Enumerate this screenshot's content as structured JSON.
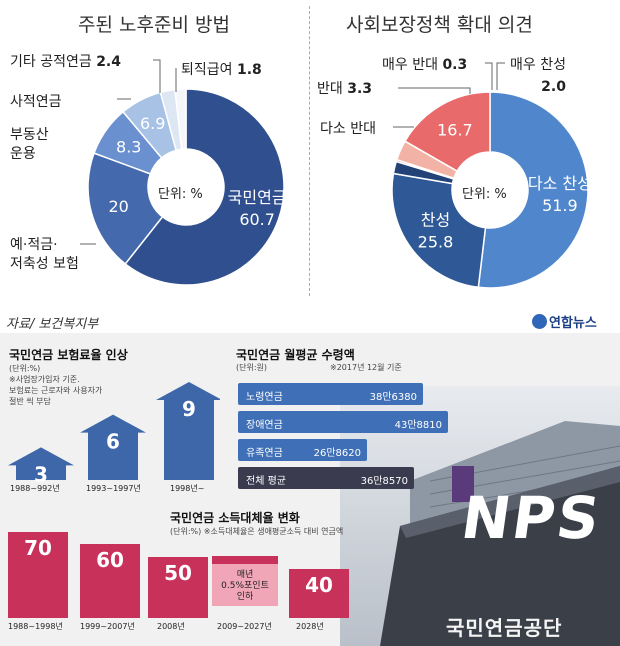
{
  "left_title": "주된 노후준비 방법",
  "right_title": "사회보장정책 확대 의견",
  "left_labels": {
    "other": "기타 공적연금",
    "other_val": "2.4",
    "severance": "퇴직급여",
    "severance_val": "1.8",
    "private": "사적연금",
    "realestate": "부동산\n운용",
    "savings": "예·적금·\n저축성 보험",
    "center": "단위: %"
  },
  "right_labels": {
    "very_against": "매우 반대",
    "very_against_val": "0.3",
    "very_for": "매우 찬성",
    "very_for_val": "2.0",
    "against": "반대",
    "against_val": "3.3",
    "some_against": "다소 반대",
    "center": "단위: %"
  },
  "source": "자료/ 보건복지부",
  "logo": "연합뉴스",
  "premium_title": "국민연금 보험료율 인상",
  "premium_note": "(단위:%)\n※사업장가입자 기준.\n보험료는 근로자와 사용자가\n절반 씩 부담",
  "monthly_title": "국민연금 월평균 수령액",
  "monthly_unit": "(단위:원)",
  "monthly_note": "※2017년 12월 기준",
  "replace_title": "국민연금 소득대체율 변화",
  "replace_note": "(단위:%)   ※소득대체율은 생애평균소득 대비 연금액",
  "replace_step_text": "매년\n0.5%포인트\n인하",
  "nps_logo": "NPS",
  "nps_name": "국민연금공단",
  "chart_data": [
    {
      "type": "pie",
      "title": "주된 노후준비 방법",
      "unit": "%",
      "labels": [
        "국민연금",
        "예·적금·저축성 보험",
        "부동산 운용",
        "사적연금",
        "기타 공적연금",
        "퇴직급여"
      ],
      "values": [
        60.7,
        20.0,
        8.3,
        6.9,
        2.4,
        1.8
      ],
      "colors": [
        "#2f4f8f",
        "#4569ad",
        "#6a90cf",
        "#a8c2e6",
        "#dde7f4",
        "#f4f6fa"
      ]
    },
    {
      "type": "pie",
      "title": "사회보장정책 확대 의견",
      "unit": "%",
      "labels": [
        "다소 찬성",
        "찬성",
        "매우 찬성",
        "매우 반대",
        "반대",
        "다소 반대"
      ],
      "values": [
        51.9,
        25.8,
        2.0,
        0.3,
        3.3,
        16.7
      ],
      "colors": [
        "#4f86cc",
        "#2f5896",
        "#234277",
        "#d84a4a",
        "#f3b2a6",
        "#e86a6a"
      ]
    },
    {
      "type": "bar",
      "title": "국민연금 보험료율 인상",
      "unit": "%",
      "categories": [
        "1988~992년",
        "1993~1997년",
        "1998년~"
      ],
      "values": [
        3,
        6,
        9
      ]
    },
    {
      "type": "bar",
      "title": "국민연금 월평균 수령액",
      "unit": "원",
      "categories": [
        "노령연금",
        "장애연금",
        "유족연금",
        "전체 평균"
      ],
      "values": [
        386380,
        438810,
        268620,
        368570
      ],
      "value_labels": [
        "38만6380",
        "43만8810",
        "26만8620",
        "36만8570"
      ]
    },
    {
      "type": "bar",
      "title": "국민연금 소득대체율 변화",
      "unit": "%",
      "categories": [
        "1988~1998년",
        "1999~2007년",
        "2008년",
        "2009~2027년",
        "2028년"
      ],
      "values": [
        70,
        60,
        50,
        null,
        40
      ],
      "value_labels": [
        "70",
        "60",
        "50",
        "",
        "40"
      ]
    }
  ]
}
